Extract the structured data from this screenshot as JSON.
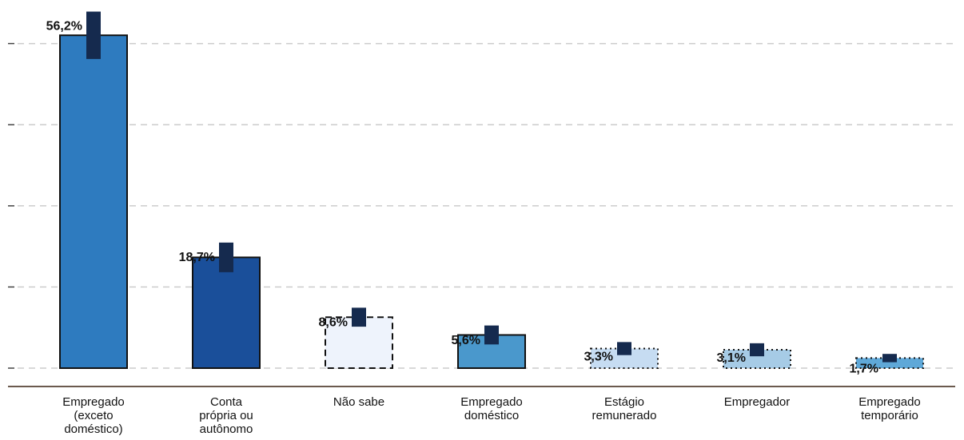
{
  "chart_data": {
    "type": "bar",
    "categories": [
      [
        "Empregado",
        "(exceto",
        "doméstico)"
      ],
      [
        "Conta",
        "própria ou",
        "autônomo"
      ],
      [
        "Não sabe"
      ],
      [
        "Empregado",
        "doméstico"
      ],
      [
        "Estágio",
        "remunerado"
      ],
      [
        "Empregador"
      ],
      [
        "Empregado",
        "temporário"
      ]
    ],
    "values": [
      56.2,
      18.7,
      8.6,
      5.6,
      3.3,
      3.1,
      1.7
    ],
    "value_labels": [
      "56,2%",
      "18,7%",
      "8,6%",
      "5,6%",
      "3,3%",
      "3,1%",
      "1,7%"
    ],
    "errors": [
      4.0,
      2.5,
      1.6,
      1.6,
      1.1,
      1.1,
      0.7
    ],
    "colors": [
      "#2e7bbf",
      "#1a4f9a",
      "#eef3fc",
      "#4a98cc",
      "#c6dcf2",
      "#a6cbe6",
      "#5fa8d8"
    ],
    "border_styles": [
      "solid",
      "solid",
      "dashed",
      "solid",
      "dotted",
      "dotted",
      "dotted"
    ],
    "error_color": "#152a4e",
    "ylim": [
      0,
      60
    ],
    "yticks": [
      0,
      13.7,
      27.4,
      41.1,
      54.8
    ],
    "grid": true
  }
}
